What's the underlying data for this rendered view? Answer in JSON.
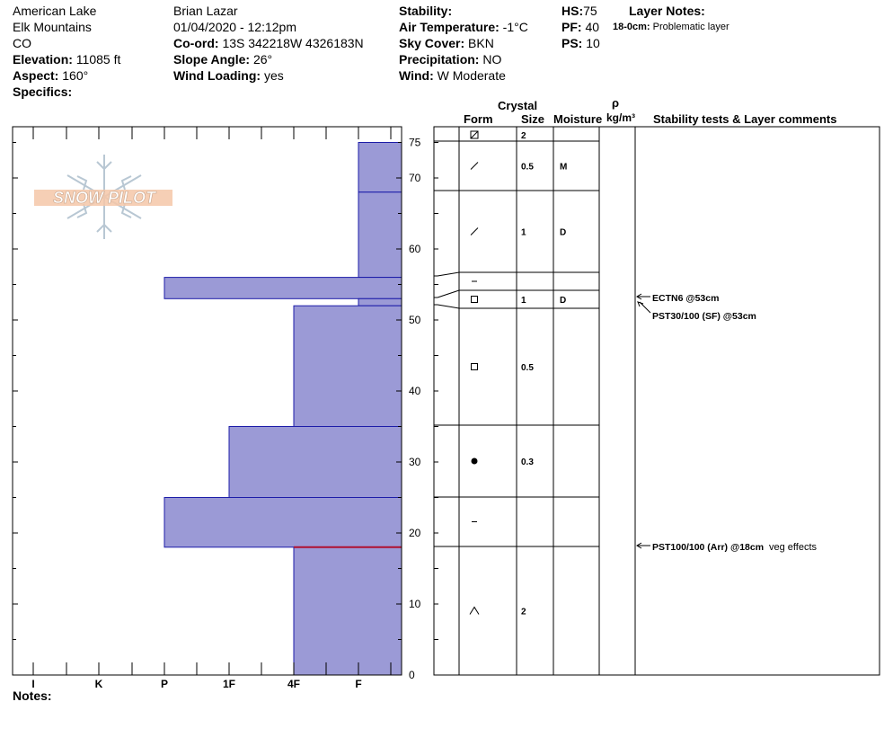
{
  "header": {
    "location": "American Lake",
    "range": "Elk Mountains",
    "state": "CO",
    "elevation_label": "Elevation:",
    "elevation_value": "11085 ft",
    "aspect_label": "Aspect:",
    "aspect_value": "160°",
    "specifics_label": "Specifics:",
    "observer": "Brian Lazar",
    "datetime": "01/04/2020 - 12:12pm",
    "coord_label": "Co-ord:",
    "coord_value": "13S 342218W 4326183N",
    "slope_label": "Slope Angle:",
    "slope_value": "26°",
    "wind_loading_label": "Wind Loading:",
    "wind_loading_value": "yes",
    "stability_label": "Stability:",
    "air_temp_label": "Air Temperature:",
    "air_temp_value": "-1°C",
    "sky_label": "Sky Cover:",
    "sky_value": "BKN",
    "precip_label": "Precipitation:",
    "precip_value": "NO",
    "wind_label": "Wind:",
    "wind_value": "W Moderate",
    "hs_label": "HS:",
    "hs_value": "75",
    "pf_label": "PF:",
    "pf_value": "40",
    "ps_label": "PS:",
    "ps_value": "10",
    "layer_notes_label": "Layer Notes:",
    "layer_note_range": "18-0cm:",
    "layer_note_text": "Problematic layer"
  },
  "logo": {
    "text": "SNOW PILOT"
  },
  "notes_label": "Notes:",
  "columns": {
    "crystal": "Crystal",
    "form": "Form",
    "size": "Size",
    "moisture": "Moisture",
    "rho": "ρ",
    "density_unit": "kg/m³",
    "stability": "Stability tests & Layer comments"
  },
  "chart_data": {
    "type": "bar",
    "orientation": "horizontal-profile",
    "height_axis": {
      "min": 0,
      "max": 75,
      "ticks": [
        0,
        10,
        20,
        30,
        40,
        50,
        60,
        70,
        75
      ]
    },
    "hardness_axis": {
      "categories": [
        "I",
        "K",
        "P",
        "1F",
        "4F",
        "F"
      ]
    },
    "layers": [
      {
        "top": 75,
        "bottom": 68,
        "hardness": "F",
        "form": "precip-particles",
        "size": "2",
        "moisture": ""
      },
      {
        "top": 75,
        "bottom": 68,
        "hardness": "F",
        "form": "decomposing",
        "size": "0.5",
        "moisture": "M"
      },
      {
        "top": 68,
        "bottom": 56,
        "hardness": "F",
        "form": "decomposing",
        "size": "1",
        "moisture": "D"
      },
      {
        "top": 56,
        "bottom": 53,
        "hardness": "P",
        "form": "rounded",
        "size": "",
        "moisture": ""
      },
      {
        "top": 53,
        "bottom": 52,
        "hardness": "F",
        "form": "faceted",
        "size": "1",
        "moisture": "D"
      },
      {
        "top": 52,
        "bottom": 35,
        "hardness": "4F",
        "form": "faceted",
        "size": "0.5",
        "moisture": ""
      },
      {
        "top": 35,
        "bottom": 25,
        "hardness": "1F",
        "form": "melt-freeze",
        "size": "0.3",
        "moisture": ""
      },
      {
        "top": 25,
        "bottom": 18,
        "hardness": "P",
        "form": "rounded",
        "size": "",
        "moisture": ""
      },
      {
        "top": 18,
        "bottom": 0,
        "hardness": "4F",
        "form": "depth-hoar",
        "size": "2",
        "moisture": ""
      }
    ],
    "tests": [
      {
        "label": "ECTN6 @53cm",
        "height": 53
      },
      {
        "label": "PST30/100 (SF) @53cm",
        "height": 53
      },
      {
        "label": "PST100/100 (Arr) @18cm",
        "height": 18,
        "comment": "veg effects"
      }
    ],
    "problem_interface_cm": 18
  }
}
